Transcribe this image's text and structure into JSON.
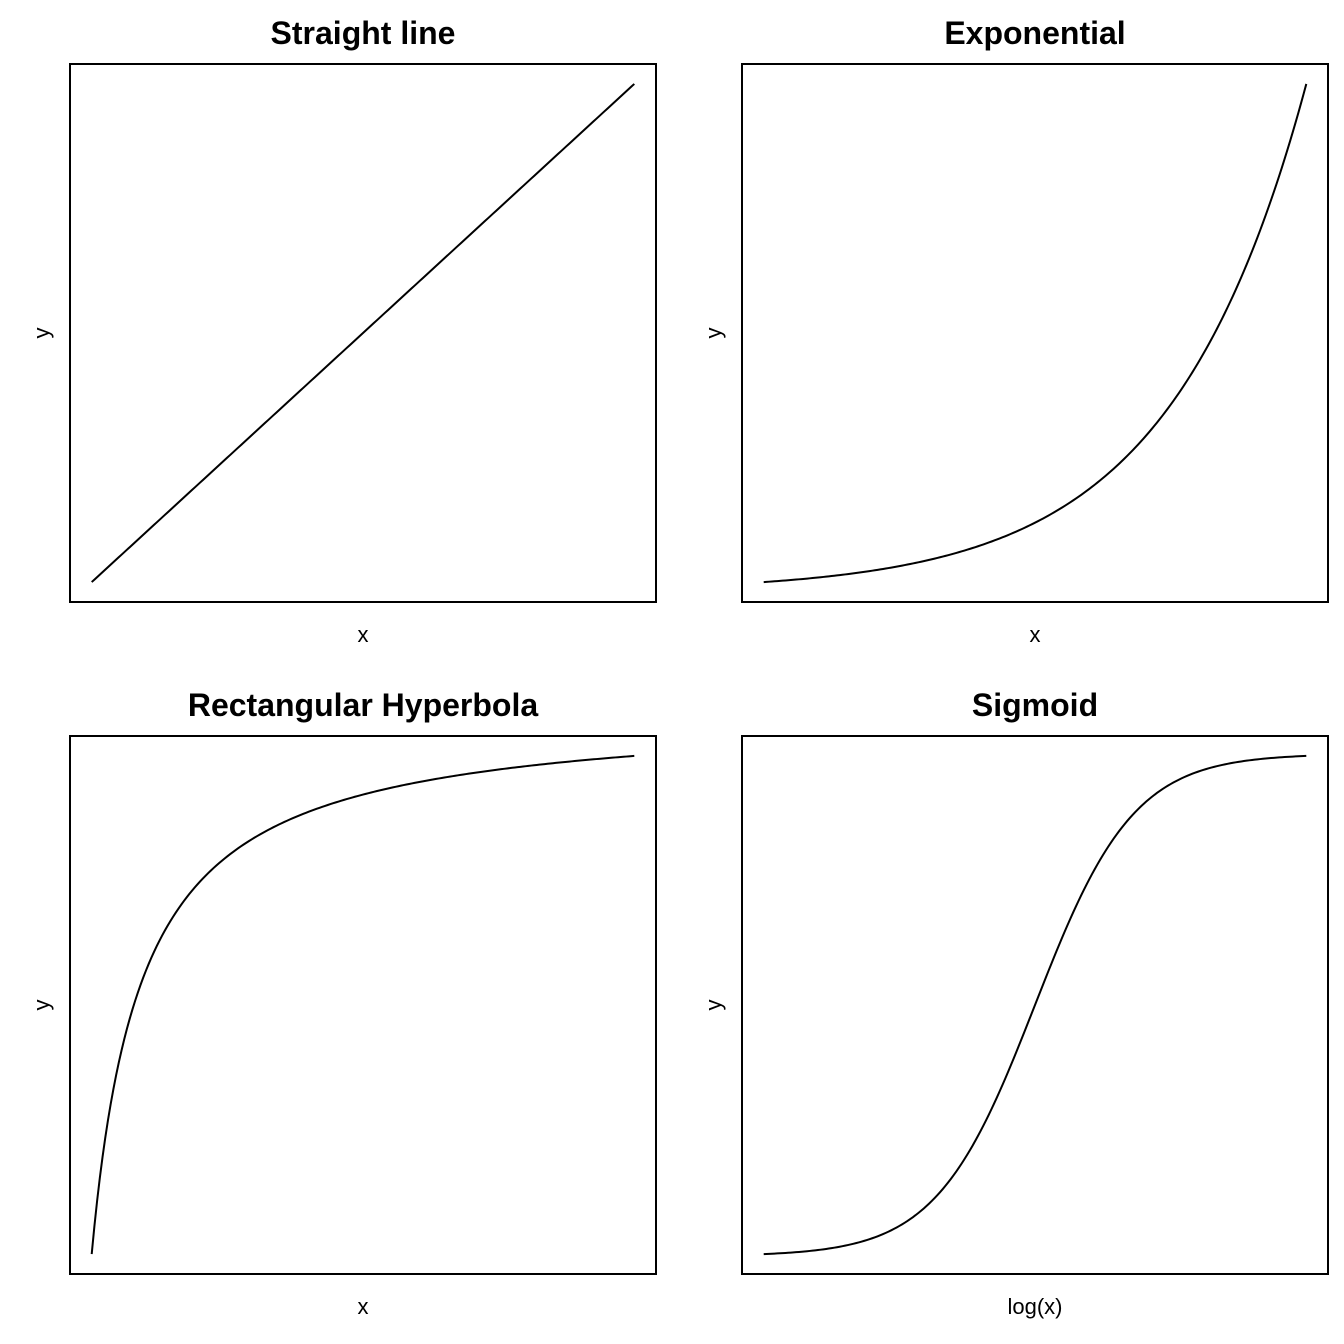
{
  "chart_data": [
    {
      "type": "line",
      "title": "Straight line",
      "xlabel": "x",
      "ylabel": "y",
      "xlim": [
        0,
        1
      ],
      "ylim": [
        0,
        1
      ],
      "grid": false,
      "curve": "linear",
      "series": [
        {
          "x": [
            0,
            0.25,
            0.5,
            0.75,
            1
          ],
          "y": [
            0,
            0.25,
            0.5,
            0.75,
            1
          ]
        }
      ]
    },
    {
      "type": "line",
      "title": "Exponential",
      "xlabel": "x",
      "ylabel": "y",
      "xlim": [
        0,
        1
      ],
      "ylim": [
        0,
        1
      ],
      "grid": false,
      "curve": "exponential",
      "series": [
        {
          "x": [
            0,
            0.25,
            0.5,
            0.75,
            1
          ],
          "y": [
            0,
            0.03,
            0.11,
            0.34,
            1
          ]
        }
      ]
    },
    {
      "type": "line",
      "title": "Rectangular Hyperbola",
      "xlabel": "x",
      "ylabel": "y",
      "xlim": [
        0,
        1
      ],
      "ylim": [
        0,
        1
      ],
      "grid": false,
      "curve": "hyperbola",
      "series": [
        {
          "x": [
            0,
            0.1,
            0.25,
            0.5,
            1
          ],
          "y": [
            0,
            0.6,
            0.8,
            0.9,
            1
          ]
        }
      ]
    },
    {
      "type": "line",
      "title": "Sigmoid",
      "xlabel": "log(x)",
      "ylabel": "y",
      "xlim": [
        0,
        1
      ],
      "ylim": [
        0,
        1
      ],
      "grid": false,
      "curve": "sigmoid",
      "series": [
        {
          "x": [
            0,
            0.25,
            0.5,
            0.75,
            1
          ],
          "y": [
            0,
            0.05,
            0.5,
            0.95,
            1
          ]
        }
      ]
    }
  ]
}
